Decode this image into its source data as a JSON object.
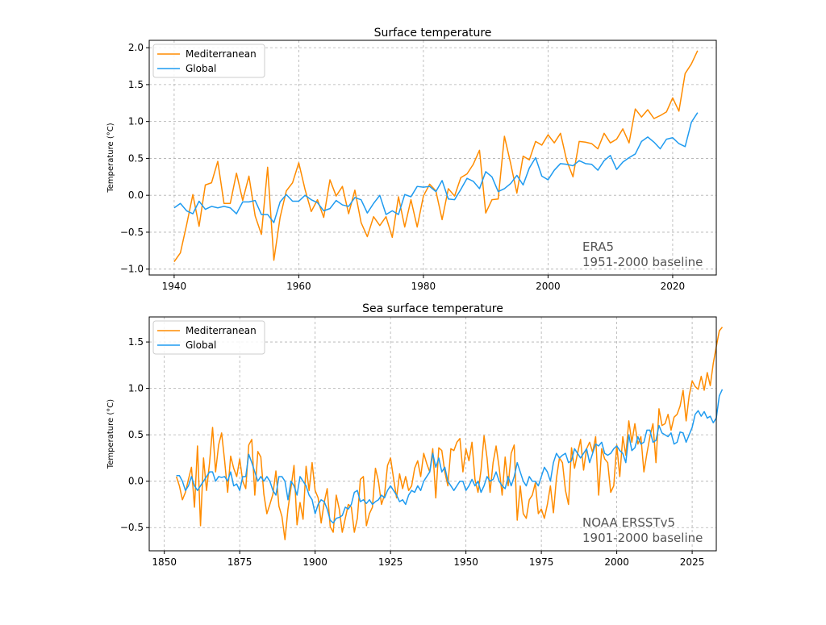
{
  "chart_data": [
    {
      "type": "line",
      "title": "Surface temperature",
      "xlabel": "",
      "ylabel": "Temperature (°C)",
      "xlim": [
        1936,
        2027
      ],
      "ylim": [
        -1.08,
        2.1
      ],
      "xticks": [
        1940,
        1960,
        1980,
        2000,
        2020
      ],
      "yticks": [
        -1.0,
        -0.5,
        0.0,
        0.5,
        1.0,
        1.5,
        2.0
      ],
      "ytick_labels": [
        "−1.0",
        "−0.5",
        "0.0",
        "0.5",
        "1.0",
        "1.5",
        "2.0"
      ],
      "grid": true,
      "legend_position": "top-left",
      "annotation": [
        "ERA5",
        "1951-2000 baseline"
      ],
      "x_start": 1940,
      "series": [
        {
          "name": "Mediterranean",
          "color": "#ff8c00",
          "values": [
            -0.9,
            -0.78,
            -0.4,
            0.01,
            -0.42,
            0.14,
            0.17,
            0.46,
            -0.11,
            -0.11,
            0.3,
            -0.07,
            0.26,
            -0.28,
            -0.53,
            0.38,
            -0.88,
            -0.3,
            0.06,
            0.17,
            0.44,
            0.08,
            -0.22,
            -0.06,
            -0.3,
            0.21,
            -0.01,
            0.12,
            -0.25,
            0.07,
            -0.37,
            -0.56,
            -0.29,
            -0.41,
            -0.29,
            -0.57,
            -0.02,
            -0.43,
            -0.06,
            -0.43,
            -0.01,
            0.15,
            0.06,
            -0.33,
            0.09,
            -0.01,
            0.24,
            0.29,
            0.42,
            0.61,
            -0.24,
            -0.06,
            -0.05,
            0.8,
            0.43,
            0.03,
            0.53,
            0.48,
            0.73,
            0.68,
            0.82,
            0.71,
            0.84,
            0.47,
            0.25,
            0.73,
            0.72,
            0.7,
            0.63,
            0.84,
            0.71,
            0.76,
            0.9,
            0.71,
            1.17,
            1.06,
            1.16,
            1.04,
            1.08,
            1.13,
            1.32,
            1.14,
            1.65,
            1.78,
            1.96
          ]
        },
        {
          "name": "Global",
          "color": "#1f9bf0",
          "values": [
            -0.17,
            -0.11,
            -0.21,
            -0.25,
            -0.08,
            -0.19,
            -0.15,
            -0.17,
            -0.15,
            -0.17,
            -0.25,
            -0.09,
            -0.09,
            -0.07,
            -0.26,
            -0.26,
            -0.37,
            -0.09,
            0.01,
            -0.08,
            -0.08,
            0.0,
            -0.06,
            -0.1,
            -0.21,
            -0.18,
            -0.07,
            -0.13,
            -0.15,
            -0.03,
            -0.06,
            -0.24,
            -0.11,
            0.0,
            -0.26,
            -0.21,
            -0.26,
            0.01,
            -0.02,
            0.12,
            0.11,
            0.12,
            0.05,
            0.2,
            -0.05,
            -0.06,
            0.08,
            0.23,
            0.19,
            0.09,
            0.32,
            0.25,
            0.05,
            0.09,
            0.16,
            0.27,
            0.14,
            0.37,
            0.51,
            0.26,
            0.21,
            0.34,
            0.43,
            0.42,
            0.4,
            0.47,
            0.43,
            0.42,
            0.34,
            0.47,
            0.54,
            0.35,
            0.45,
            0.51,
            0.56,
            0.73,
            0.79,
            0.72,
            0.63,
            0.76,
            0.78,
            0.7,
            0.66,
            0.99,
            1.12
          ]
        }
      ]
    },
    {
      "type": "line",
      "title": "Sea surface temperature",
      "xlabel": "",
      "ylabel": "Temperature (°C)",
      "xlim": [
        1845,
        2033
      ],
      "ylim": [
        -0.75,
        1.77
      ],
      "xticks": [
        1850,
        1875,
        1900,
        1925,
        1950,
        1975,
        2000,
        2025
      ],
      "yticks": [
        -0.5,
        0.0,
        0.5,
        1.0,
        1.5
      ],
      "ytick_labels": [
        "−0.5",
        "0.0",
        "0.5",
        "1.0",
        "1.5"
      ],
      "grid": true,
      "legend_position": "top-left",
      "annotation": [
        "NOAA ERSSTv5",
        "1901-2000 baseline"
      ],
      "x_start": 1854,
      "series": [
        {
          "name": "Mediterranean",
          "color": "#ff8c00",
          "values": [
            0.05,
            -0.05,
            -0.2,
            -0.12,
            0.02,
            0.15,
            -0.28,
            0.38,
            -0.48,
            0.25,
            -0.1,
            0.2,
            0.58,
            0.1,
            0.39,
            0.52,
            0.22,
            -0.12,
            0.27,
            0.14,
            0.05,
            0.24,
            0.0,
            -0.08,
            0.39,
            0.45,
            -0.15,
            0.32,
            0.26,
            -0.14,
            -0.35,
            -0.25,
            -0.14,
            0.11,
            -0.27,
            -0.38,
            -0.63,
            -0.3,
            -0.07,
            0.17,
            -0.47,
            -0.23,
            -0.41,
            0.16,
            -0.1,
            0.2,
            -0.1,
            -0.18,
            -0.45,
            -0.23,
            -0.08,
            -0.49,
            -0.55,
            -0.15,
            -0.3,
            -0.55,
            -0.4,
            -0.25,
            -0.28,
            -0.55,
            -0.4,
            0.02,
            0.05,
            -0.48,
            -0.35,
            -0.28,
            0.14,
            0.0,
            -0.25,
            -0.15,
            0.17,
            0.25,
            0.03,
            -0.18,
            0.08,
            -0.08,
            0.05,
            -0.1,
            -0.05,
            0.14,
            0.22,
            0.05,
            0.3,
            0.19,
            0.1,
            0.35,
            -0.18,
            0.36,
            0.33,
            0.1,
            -0.05,
            0.35,
            0.33,
            0.42,
            0.46,
            0.1,
            0.35,
            0.22,
            0.42,
            0.02,
            -0.12,
            0.12,
            0.49,
            0.25,
            -0.12,
            0.2,
            0.38,
            0.15,
            -0.15,
            0.26,
            -0.05,
            0.3,
            0.39,
            -0.42,
            -0.05,
            -0.35,
            -0.4,
            -0.2,
            -0.15,
            -0.02,
            -0.35,
            -0.3,
            -0.4,
            -0.25,
            -0.05,
            -0.34,
            0.03,
            0.25,
            0.2,
            -0.1,
            -0.25,
            0.36,
            0.14,
            0.3,
            0.45,
            0.12,
            0.35,
            0.42,
            0.31,
            0.48,
            -0.15,
            0.35,
            0.24,
            0.2,
            -0.12,
            -0.05,
            0.39,
            0.05,
            0.48,
            0.28,
            0.65,
            0.42,
            0.62,
            0.4,
            0.48,
            0.1,
            0.3,
            0.48,
            0.62,
            0.2,
            0.78,
            0.6,
            0.62,
            0.72,
            0.55,
            0.69,
            0.72,
            0.81,
            0.98,
            0.65,
            0.92,
            1.08,
            1.02,
            0.99,
            1.13,
            0.98,
            1.17,
            1.03,
            1.27,
            1.45,
            1.62,
            1.66
          ]
        },
        {
          "name": "Global",
          "color": "#1f9bf0",
          "values": [
            0.06,
            0.06,
            0.0,
            -0.1,
            -0.05,
            0.05,
            -0.05,
            -0.1,
            -0.05,
            0.0,
            0.05,
            0.1,
            0.1,
            0.0,
            0.05,
            0.04,
            0.05,
            0.0,
            0.1,
            -0.05,
            -0.03,
            -0.1,
            0.05,
            0.05,
            0.29,
            0.2,
            0.1,
            0.0,
            0.05,
            0.0,
            0.05,
            0.0,
            -0.1,
            -0.15,
            0.05,
            0.05,
            0.0,
            -0.2,
            0.0,
            -0.05,
            -0.15,
            0.05,
            0.0,
            -0.05,
            -0.15,
            -0.2,
            -0.35,
            -0.25,
            -0.2,
            -0.22,
            -0.3,
            -0.42,
            -0.45,
            -0.4,
            -0.39,
            -0.37,
            -0.28,
            -0.3,
            -0.25,
            -0.12,
            -0.1,
            -0.22,
            -0.2,
            -0.24,
            -0.2,
            -0.25,
            -0.22,
            -0.2,
            -0.15,
            -0.18,
            -0.1,
            -0.05,
            -0.1,
            -0.15,
            -0.22,
            -0.2,
            -0.25,
            -0.15,
            -0.1,
            -0.12,
            -0.05,
            -0.1,
            0.0,
            0.05,
            0.1,
            0.3,
            0.15,
            0.25,
            0.1,
            0.15,
            0.0,
            -0.05,
            -0.1,
            -0.05,
            0.0,
            0.0,
            -0.1,
            -0.05,
            0.02,
            -0.05,
            0.0,
            -0.12,
            -0.05,
            0.05,
            0.0,
            0.02,
            0.1,
            0.0,
            -0.05,
            -0.08,
            0.05,
            -0.05,
            0.05,
            0.2,
            0.1,
            0.0,
            -0.05,
            0.05,
            0.0,
            0.0,
            -0.05,
            0.05,
            0.15,
            0.1,
            0.0,
            0.2,
            0.3,
            0.25,
            0.28,
            0.3,
            0.2,
            0.22,
            0.35,
            0.3,
            0.25,
            0.3,
            0.35,
            0.2,
            0.3,
            0.4,
            0.38,
            0.42,
            0.3,
            0.28,
            0.3,
            0.35,
            0.38,
            0.33,
            0.3,
            0.2,
            0.5,
            0.33,
            0.36,
            0.48,
            0.4,
            0.42,
            0.55,
            0.55,
            0.42,
            0.44,
            0.6,
            0.52,
            0.5,
            0.48,
            0.52,
            0.4,
            0.42,
            0.53,
            0.52,
            0.42,
            0.5,
            0.58,
            0.72,
            0.76,
            0.7,
            0.75,
            0.68,
            0.7,
            0.63,
            0.68,
            0.92,
            0.99
          ]
        }
      ]
    }
  ]
}
